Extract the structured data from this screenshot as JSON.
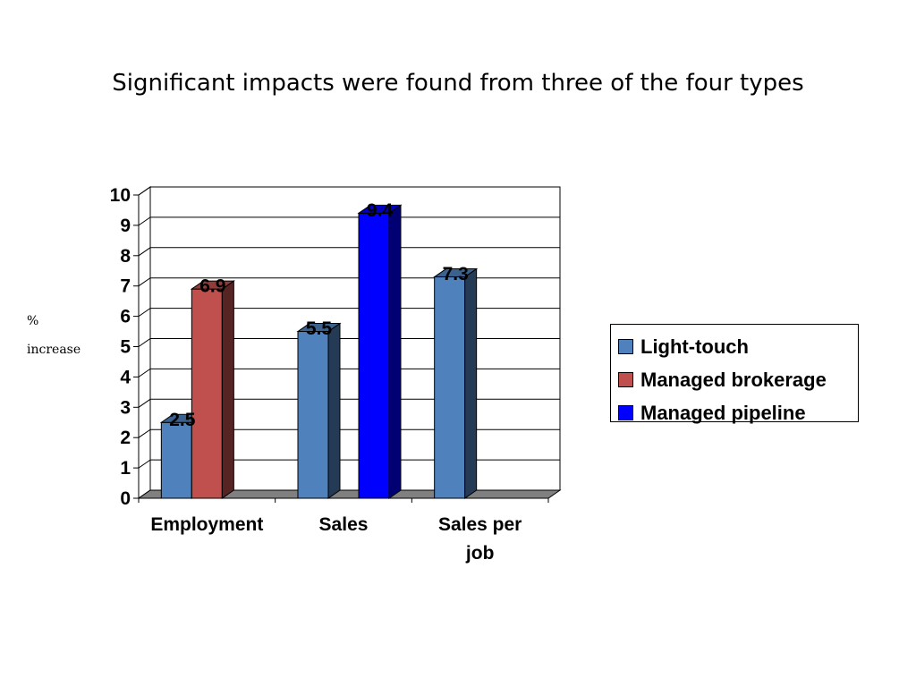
{
  "title": "Significant impacts were found from three of the four types",
  "y_axis_label": [
    "%",
    "increase"
  ],
  "colors": {
    "light_touch": "#4f81bd",
    "managed_brokerage": "#c0504d",
    "managed_pipeline": "#0000ff"
  },
  "chart_data": {
    "type": "bar",
    "categories": [
      [
        "Employment"
      ],
      [
        "Sales"
      ],
      [
        "Sales per",
        "job"
      ]
    ],
    "series": [
      {
        "name": "Light-touch",
        "values": [
          2.5,
          5.5,
          7.3
        ]
      },
      {
        "name": "Managed brokerage",
        "values": [
          6.9,
          null,
          null
        ]
      },
      {
        "name": "Managed pipeline",
        "values": [
          null,
          9.4,
          null
        ]
      }
    ],
    "ylim": [
      0,
      10
    ],
    "yticks": [
      "0",
      "1",
      "2",
      "3",
      "4",
      "5",
      "6",
      "7",
      "8",
      "9",
      "10"
    ],
    "data_labels": true,
    "grid": true,
    "legend_position": "right",
    "style": "3d-bar"
  }
}
